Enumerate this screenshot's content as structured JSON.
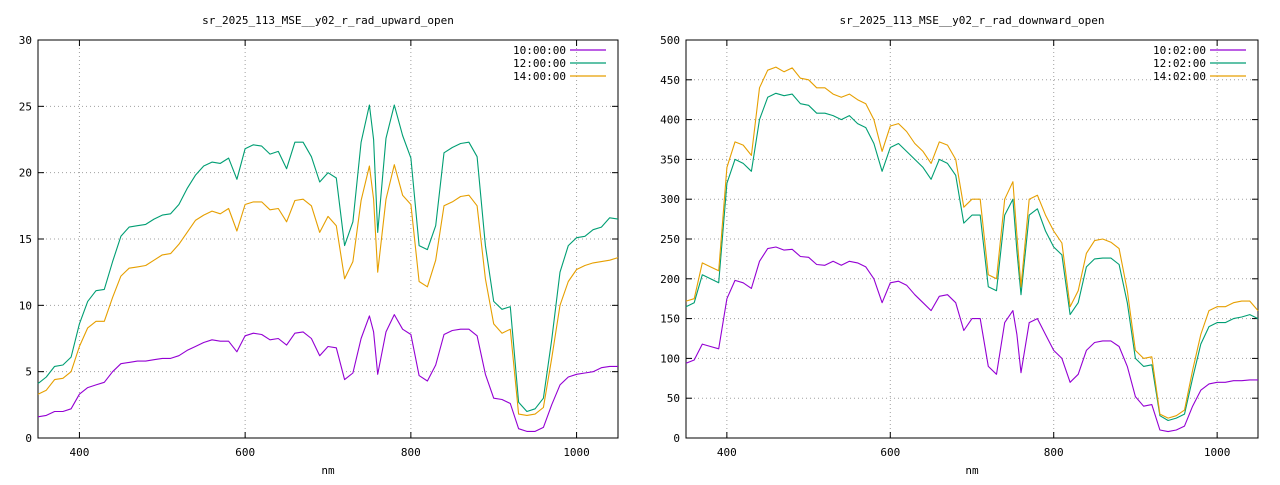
{
  "chart_data": [
    {
      "type": "line",
      "title": "sr_2025_113_MSE__y02_r_rad_upward_open",
      "xlabel": "nm",
      "ylabel": "",
      "xlim": [
        350,
        1050
      ],
      "ylim": [
        0,
        30
      ],
      "xticks": [
        400,
        600,
        800,
        1000
      ],
      "yticks": [
        0,
        5,
        10,
        15,
        20,
        25,
        30
      ],
      "grid": true,
      "legend": "top-right",
      "x": [
        350,
        360,
        370,
        380,
        390,
        400,
        410,
        420,
        430,
        440,
        450,
        460,
        470,
        480,
        490,
        500,
        510,
        520,
        530,
        540,
        550,
        560,
        570,
        580,
        590,
        600,
        610,
        620,
        630,
        640,
        650,
        660,
        670,
        680,
        690,
        700,
        710,
        720,
        730,
        740,
        750,
        755,
        760,
        770,
        780,
        790,
        800,
        810,
        820,
        830,
        840,
        850,
        860,
        870,
        880,
        890,
        900,
        910,
        920,
        930,
        940,
        950,
        960,
        970,
        980,
        990,
        1000,
        1010,
        1020,
        1030,
        1040,
        1050
      ],
      "series": [
        {
          "name": "10:00:00",
          "color": "#9400d3",
          "values": [
            1.6,
            1.7,
            2.0,
            2.0,
            2.2,
            3.3,
            3.8,
            4.0,
            4.2,
            5.0,
            5.6,
            5.7,
            5.8,
            5.8,
            5.9,
            6.0,
            6.0,
            6.2,
            6.6,
            6.9,
            7.2,
            7.4,
            7.3,
            7.3,
            6.5,
            7.7,
            7.9,
            7.8,
            7.4,
            7.5,
            7.0,
            7.9,
            8.0,
            7.5,
            6.2,
            6.9,
            6.8,
            4.4,
            4.9,
            7.5,
            9.2,
            8.0,
            4.8,
            8.0,
            9.3,
            8.2,
            7.8,
            4.7,
            4.3,
            5.5,
            7.8,
            8.1,
            8.2,
            8.2,
            7.7,
            4.8,
            3.0,
            2.9,
            2.6,
            0.7,
            0.5,
            0.5,
            0.8,
            2.5,
            4.0,
            4.6,
            4.8,
            4.9,
            5.0,
            5.3,
            5.4,
            5.4
          ]
        },
        {
          "name": "12:00:00",
          "color": "#009e73",
          "values": [
            4.1,
            4.6,
            5.4,
            5.5,
            6.1,
            8.6,
            10.3,
            11.1,
            11.2,
            13.3,
            15.2,
            15.9,
            16.0,
            16.1,
            16.5,
            16.8,
            16.9,
            17.6,
            18.8,
            19.8,
            20.5,
            20.8,
            20.7,
            21.1,
            19.5,
            21.8,
            22.1,
            22.0,
            21.4,
            21.6,
            20.3,
            22.3,
            22.3,
            21.2,
            19.3,
            20.0,
            19.6,
            14.5,
            16.3,
            22.3,
            25.1,
            22.5,
            15.5,
            22.6,
            25.1,
            22.8,
            21.1,
            14.5,
            14.2,
            16.0,
            21.5,
            21.9,
            22.2,
            22.3,
            21.2,
            14.5,
            10.3,
            9.7,
            9.9,
            2.7,
            2.0,
            2.2,
            3.0,
            7.4,
            12.5,
            14.5,
            15.1,
            15.2,
            15.7,
            15.9,
            16.6,
            16.5
          ]
        },
        {
          "name": "14:00:00",
          "color": "#e69f00",
          "values": [
            3.3,
            3.6,
            4.4,
            4.5,
            5.0,
            6.9,
            8.3,
            8.8,
            8.8,
            10.6,
            12.2,
            12.8,
            12.9,
            13.0,
            13.4,
            13.8,
            13.9,
            14.6,
            15.5,
            16.4,
            16.8,
            17.1,
            16.9,
            17.3,
            15.6,
            17.6,
            17.8,
            17.8,
            17.2,
            17.3,
            16.3,
            17.9,
            18.0,
            17.5,
            15.5,
            16.7,
            16.0,
            12.0,
            13.3,
            17.9,
            20.5,
            18.0,
            12.5,
            18.0,
            20.6,
            18.3,
            17.6,
            11.8,
            11.4,
            13.4,
            17.5,
            17.8,
            18.2,
            18.3,
            17.5,
            12.0,
            8.6,
            7.9,
            8.2,
            1.8,
            1.7,
            1.8,
            2.3,
            6.0,
            10.0,
            11.8,
            12.7,
            13.0,
            13.2,
            13.3,
            13.4,
            13.6
          ]
        }
      ]
    },
    {
      "type": "line",
      "title": "sr_2025_113_MSE__y02_r_rad_downward_open",
      "xlabel": "nm",
      "ylabel": "",
      "xlim": [
        350,
        1050
      ],
      "ylim": [
        0,
        500
      ],
      "xticks": [
        400,
        600,
        800,
        1000
      ],
      "yticks": [
        0,
        50,
        100,
        150,
        200,
        250,
        300,
        350,
        400,
        450,
        500
      ],
      "grid": true,
      "legend": "top-right",
      "x": [
        350,
        360,
        370,
        380,
        390,
        400,
        410,
        420,
        430,
        440,
        450,
        460,
        470,
        480,
        490,
        500,
        510,
        520,
        530,
        540,
        550,
        560,
        570,
        580,
        590,
        600,
        610,
        620,
        630,
        640,
        650,
        660,
        670,
        680,
        690,
        700,
        710,
        720,
        730,
        740,
        750,
        755,
        760,
        770,
        780,
        790,
        800,
        810,
        820,
        830,
        840,
        850,
        860,
        870,
        880,
        890,
        900,
        910,
        920,
        930,
        940,
        950,
        960,
        970,
        980,
        990,
        1000,
        1010,
        1020,
        1030,
        1040,
        1050
      ],
      "series": [
        {
          "name": "10:02:00",
          "color": "#9400d3",
          "values": [
            94,
            98,
            118,
            115,
            112,
            175,
            198,
            195,
            188,
            222,
            238,
            240,
            236,
            237,
            228,
            227,
            218,
            217,
            222,
            217,
            222,
            220,
            215,
            200,
            170,
            195,
            197,
            192,
            180,
            170,
            160,
            178,
            180,
            170,
            135,
            150,
            150,
            90,
            80,
            145,
            160,
            130,
            82,
            145,
            150,
            130,
            110,
            100,
            70,
            80,
            110,
            120,
            122,
            122,
            115,
            90,
            52,
            40,
            42,
            10,
            8,
            10,
            15,
            40,
            60,
            68,
            70,
            70,
            72,
            72,
            73,
            73
          ]
        },
        {
          "name": "12:02:00",
          "color": "#009e73",
          "values": [
            165,
            170,
            205,
            200,
            195,
            320,
            350,
            345,
            335,
            400,
            428,
            433,
            430,
            432,
            420,
            418,
            408,
            408,
            405,
            400,
            405,
            395,
            390,
            370,
            335,
            365,
            370,
            360,
            350,
            340,
            325,
            350,
            345,
            330,
            270,
            280,
            280,
            190,
            185,
            280,
            300,
            235,
            180,
            280,
            288,
            260,
            240,
            230,
            155,
            170,
            215,
            225,
            226,
            226,
            218,
            170,
            100,
            90,
            92,
            28,
            22,
            25,
            30,
            75,
            118,
            140,
            145,
            145,
            150,
            152,
            155,
            150
          ]
        },
        {
          "name": "14:02:00",
          "color": "#e69f00",
          "values": [
            172,
            175,
            220,
            215,
            210,
            340,
            372,
            368,
            355,
            440,
            462,
            466,
            460,
            465,
            452,
            450,
            440,
            440,
            432,
            428,
            432,
            425,
            420,
            400,
            360,
            392,
            395,
            385,
            370,
            360,
            345,
            372,
            368,
            350,
            290,
            300,
            300,
            205,
            200,
            300,
            322,
            255,
            190,
            300,
            305,
            280,
            260,
            245,
            165,
            185,
            232,
            248,
            250,
            246,
            238,
            185,
            110,
            100,
            102,
            30,
            25,
            28,
            35,
            85,
            130,
            160,
            165,
            165,
            170,
            172,
            172,
            160
          ]
        }
      ]
    }
  ]
}
